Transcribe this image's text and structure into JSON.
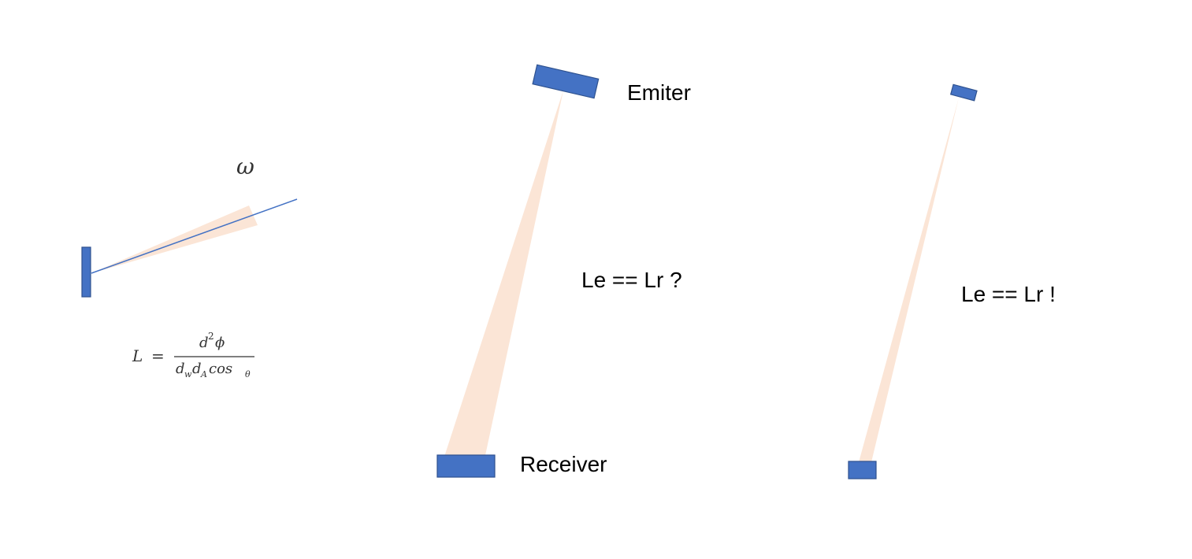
{
  "colors": {
    "shape_fill": "#4472c4",
    "shape_stroke": "#2f528f",
    "beam": "#fbe5d6",
    "line": "#4472c4",
    "text": "#000000",
    "formula": "#333333"
  },
  "panel_left": {
    "omega_symbol": "ω",
    "formula": {
      "lhs": "L",
      "equals": "=",
      "numerator_d": "d",
      "numerator_exp": "2",
      "numerator_phi": "ϕ",
      "den_d1": "d",
      "den_sub1": "w",
      "den_d2": "d",
      "den_sub2": "A",
      "den_cos": "cos",
      "den_sub3": "θ"
    }
  },
  "panel_middle": {
    "emitter_label": "Emiter",
    "receiver_label": "Receiver",
    "question": "Le == Lr ?"
  },
  "panel_right": {
    "statement": "Le == Lr !"
  }
}
